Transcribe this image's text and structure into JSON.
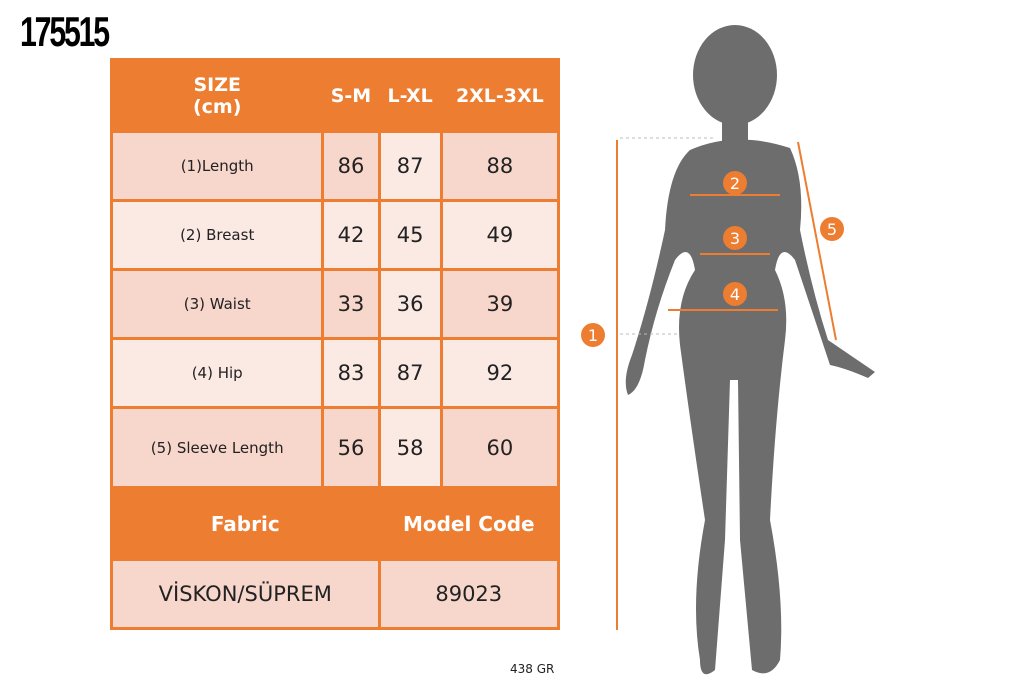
{
  "product_code": "175515",
  "table": {
    "header": [
      "SIZE\n(cm)",
      "S-M",
      "L-XL",
      "2XL-3XL"
    ],
    "header_size": "SIZE",
    "header_unit": "(cm)",
    "rows": [
      {
        "label": "(1)Length",
        "values": [
          "86",
          "87",
          "88"
        ]
      },
      {
        "label": "(2) Breast",
        "values": [
          "42",
          "45",
          "49"
        ]
      },
      {
        "label": "(3) Waist",
        "values": [
          "33",
          "36",
          "39"
        ]
      },
      {
        "label": "(4) Hip",
        "values": [
          "83",
          "87",
          "92"
        ]
      },
      {
        "label": "(5) Sleeve Length",
        "values": [
          "56",
          "58",
          "60"
        ]
      }
    ],
    "fabric_label": "Fabric",
    "model_code_label": "Model Code",
    "fabric_value": "VİSKON/SÜPREM",
    "model_code_value": "89023"
  },
  "weight": "438 GR",
  "diagram": {
    "markers": [
      "1",
      "2",
      "3",
      "4",
      "5"
    ],
    "accent_color": "#ed7d31",
    "silhouette_color": "#6d6d6d"
  }
}
